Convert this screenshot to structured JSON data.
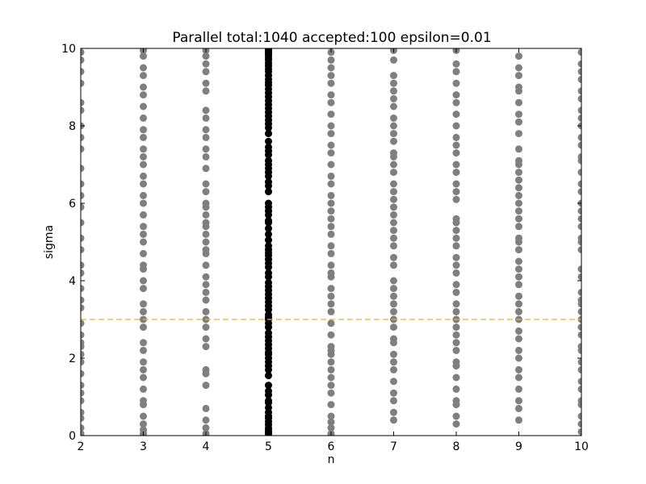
{
  "chart_data": {
    "type": "scatter",
    "title": "Parallel total:1040 accepted:100 epsilon=0.01",
    "xlabel": "n",
    "ylabel": "sigma",
    "xlim": [
      2,
      10
    ],
    "ylim": [
      0,
      10
    ],
    "xticks": [
      "2",
      "3",
      "4",
      "5",
      "6",
      "7",
      "8",
      "9",
      "10"
    ],
    "yticks": [
      "0",
      "2",
      "4",
      "6",
      "8",
      "10"
    ],
    "grid": false,
    "reference_line": {
      "y": 3.0,
      "style": "dashed",
      "color": "#e8b830"
    },
    "colors": {
      "rejected": "#7f7f7f",
      "accepted": "#000000"
    },
    "series": [
      {
        "status": "rejected",
        "points_by_n": {
          "2": [
            0.05,
            0.2,
            0.45,
            0.6,
            0.9,
            1.1,
            1.3,
            1.6,
            1.9,
            2.1,
            2.3,
            2.4,
            2.6,
            2.9,
            3.3,
            3.5,
            3.8,
            4.2,
            4.4,
            4.8,
            5.1,
            5.5,
            5.9,
            6.2,
            6.5,
            6.9,
            7.4,
            7.7,
            8.0,
            8.4,
            8.6,
            9.1,
            9.4,
            9.7,
            9.9
          ],
          "3": [
            0.05,
            0.15,
            0.3,
            0.5,
            0.8,
            0.9,
            1.2,
            1.5,
            1.7,
            1.9,
            2.2,
            2.4,
            2.8,
            3.0,
            3.2,
            3.4,
            3.8,
            4.0,
            4.3,
            4.4,
            4.7,
            5.0,
            5.2,
            5.4,
            5.7,
            6.0,
            6.2,
            6.5,
            6.7,
            7.0,
            7.2,
            7.4,
            7.7,
            7.9,
            8.2,
            8.5,
            8.8,
            9.0,
            9.3,
            9.5,
            9.8,
            9.95
          ],
          "4": [
            0.05,
            0.2,
            0.4,
            0.7,
            1.3,
            1.6,
            1.7,
            2.3,
            2.5,
            2.8,
            3.0,
            3.2,
            3.5,
            3.7,
            3.9,
            4.1,
            4.4,
            4.7,
            4.8,
            5.0,
            5.2,
            5.4,
            5.5,
            5.7,
            5.9,
            6.0,
            6.3,
            6.5,
            6.9,
            7.2,
            7.4,
            7.7,
            7.9,
            8.2,
            8.4,
            8.9,
            9.1,
            9.4,
            9.6,
            9.8,
            9.95
          ],
          "6": [
            0.05,
            0.2,
            0.35,
            0.5,
            0.8,
            1.1,
            1.3,
            1.5,
            1.7,
            1.9,
            2.1,
            2.2,
            2.3,
            2.6,
            2.9,
            3.2,
            3.4,
            3.6,
            3.8,
            4.1,
            4.2,
            4.4,
            4.7,
            4.9,
            5.2,
            5.4,
            5.6,
            5.8,
            6.0,
            6.2,
            6.5,
            6.7,
            7.0,
            7.3,
            7.5,
            7.8,
            8.0,
            8.3,
            8.6,
            8.8,
            9.1,
            9.3,
            9.5,
            9.7,
            9.9
          ],
          "7": [
            0.4,
            0.6,
            0.9,
            1.1,
            1.4,
            1.7,
            1.9,
            2.1,
            2.4,
            2.5,
            2.8,
            3.0,
            3.2,
            3.4,
            3.6,
            3.8,
            4.0,
            4.4,
            4.6,
            4.9,
            5.1,
            5.3,
            5.5,
            5.7,
            5.9,
            6.1,
            6.3,
            6.5,
            6.8,
            7.0,
            7.2,
            7.3,
            7.6,
            7.8,
            8.0,
            8.2,
            8.5,
            8.7,
            8.9,
            9.1,
            9.3,
            9.7,
            9.95
          ],
          "8": [
            0.3,
            0.5,
            0.8,
            0.9,
            1.2,
            1.5,
            1.8,
            1.9,
            2.2,
            2.4,
            2.6,
            2.8,
            3.0,
            3.2,
            3.4,
            3.7,
            3.9,
            4.2,
            4.4,
            4.6,
            4.9,
            5.1,
            5.3,
            5.5,
            5.6,
            6.1,
            6.3,
            6.5,
            6.8,
            7.0,
            7.3,
            7.5,
            7.7,
            8.0,
            8.3,
            8.6,
            8.8,
            9.1,
            9.4,
            9.6,
            9.95
          ],
          "9": [
            0.4,
            0.7,
            0.9,
            1.2,
            1.5,
            1.7,
            2.0,
            2.2,
            2.5,
            2.7,
            3.0,
            3.2,
            3.4,
            3.6,
            3.9,
            4.1,
            4.3,
            4.5,
            4.8,
            5.0,
            5.1,
            5.4,
            5.6,
            5.8,
            6.0,
            6.2,
            6.4,
            6.6,
            6.8,
            7.0,
            7.1,
            7.4,
            7.8,
            8.1,
            8.3,
            8.6,
            8.9,
            9.0,
            9.3,
            9.5,
            9.8
          ],
          "10": [
            0.1,
            0.3,
            0.5,
            0.8,
            0.9,
            1.2,
            1.4,
            1.7,
            1.9,
            2.2,
            2.3,
            2.6,
            2.8,
            3.0,
            3.2,
            3.4,
            3.5,
            3.7,
            4.1,
            4.3,
            4.8,
            5.0,
            5.1,
            5.4,
            5.6,
            5.8,
            6.0,
            6.3,
            6.5,
            6.8,
            7.1,
            7.2,
            7.5,
            7.7,
            8.0,
            8.2,
            8.4,
            8.7,
            8.9,
            9.2,
            9.4,
            9.6,
            9.9
          ]
        }
      },
      {
        "status": "accepted",
        "points_by_n": {
          "5": [
            0.05,
            0.1,
            0.15,
            0.2,
            0.28,
            0.36,
            0.45,
            0.5,
            0.6,
            0.72,
            0.85,
            0.9,
            1.05,
            1.15,
            1.3,
            1.55,
            1.7,
            1.8,
            1.9,
            2.0,
            2.1,
            2.15,
            2.25,
            2.35,
            2.45,
            2.55,
            2.65,
            2.8,
            2.9,
            3.0,
            3.05,
            3.12,
            3.25,
            3.35,
            3.45,
            3.55,
            3.65,
            3.75,
            3.85,
            3.95,
            4.1,
            4.2,
            4.35,
            4.45,
            4.55,
            4.65,
            4.72,
            4.8,
            4.9,
            5.05,
            5.2,
            5.35,
            5.5,
            5.55,
            5.7,
            5.8,
            5.9,
            6.0,
            6.3,
            6.45,
            6.55,
            6.7,
            6.8,
            6.9,
            7.0,
            7.1,
            7.25,
            7.35,
            7.45,
            7.6,
            7.8,
            7.95,
            8.05,
            8.15,
            8.25,
            8.35,
            8.45,
            8.55,
            8.65,
            8.75,
            8.85,
            8.95,
            9.05,
            9.12,
            9.2,
            9.3,
            9.4,
            9.47,
            9.55,
            9.62,
            9.7,
            9.75,
            9.82,
            9.88,
            9.92,
            9.96,
            9.98,
            9.99,
            9.9,
            9.85
          ]
        }
      }
    ]
  }
}
